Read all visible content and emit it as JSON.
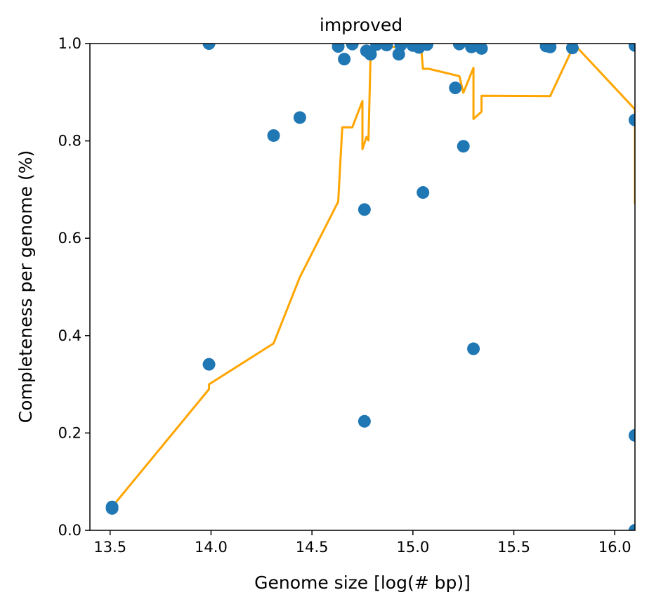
{
  "chart_data": {
    "type": "scatter",
    "title": "improved",
    "xlabel": "Genome size [log(# bp)]",
    "ylabel": "Completeness per genome (%)",
    "xlim": [
      13.4,
      16.1
    ],
    "ylim": [
      0.0,
      1.0
    ],
    "x_ticks": [
      13.5,
      14.0,
      14.5,
      15.0,
      15.5,
      16.0
    ],
    "x_tick_labels": [
      "13.5",
      "14.0",
      "14.5",
      "15.0",
      "15.5",
      "16.0"
    ],
    "y_ticks": [
      0.0,
      0.2,
      0.4,
      0.6,
      0.8,
      1.0
    ],
    "y_tick_labels": [
      "0.0",
      "0.2",
      "0.4",
      "0.6",
      "0.8",
      "1.0"
    ],
    "grid": false,
    "series": [
      {
        "kind": "points",
        "color": "#1f77b4",
        "points": [
          {
            "x": 13.51,
            "y": 0.048
          },
          {
            "x": 13.51,
            "y": 0.045
          },
          {
            "x": 13.99,
            "y": 1.0
          },
          {
            "x": 13.99,
            "y": 0.341
          },
          {
            "x": 14.31,
            "y": 0.811
          },
          {
            "x": 14.44,
            "y": 0.848
          },
          {
            "x": 14.63,
            "y": 0.994
          },
          {
            "x": 14.66,
            "y": 0.968
          },
          {
            "x": 14.7,
            "y": 0.999
          },
          {
            "x": 14.76,
            "y": 0.659
          },
          {
            "x": 14.76,
            "y": 0.224
          },
          {
            "x": 14.77,
            "y": 0.985
          },
          {
            "x": 14.79,
            "y": 0.978
          },
          {
            "x": 14.82,
            "y": 0.998
          },
          {
            "x": 14.87,
            "y": 0.997
          },
          {
            "x": 14.93,
            "y": 0.978
          },
          {
            "x": 14.94,
            "y": 0.997
          },
          {
            "x": 15.0,
            "y": 0.996
          },
          {
            "x": 15.03,
            "y": 0.992
          },
          {
            "x": 15.05,
            "y": 0.694
          },
          {
            "x": 15.07,
            "y": 0.998
          },
          {
            "x": 15.21,
            "y": 0.909
          },
          {
            "x": 15.23,
            "y": 0.999
          },
          {
            "x": 15.25,
            "y": 0.789
          },
          {
            "x": 15.29,
            "y": 0.993
          },
          {
            "x": 15.3,
            "y": 0.373
          },
          {
            "x": 15.34,
            "y": 0.99
          },
          {
            "x": 15.66,
            "y": 0.995
          },
          {
            "x": 15.68,
            "y": 0.993
          },
          {
            "x": 15.79,
            "y": 0.991
          },
          {
            "x": 16.1,
            "y": 0.996
          },
          {
            "x": 16.1,
            "y": 0.843
          },
          {
            "x": 16.1,
            "y": 0.195
          },
          {
            "x": 16.1,
            "y": 0.0
          }
        ]
      },
      {
        "kind": "line",
        "color": "#ffa500",
        "points": [
          {
            "x": 13.51,
            "y": 0.048
          },
          {
            "x": 13.99,
            "y": 0.29
          },
          {
            "x": 13.99,
            "y": 0.3
          },
          {
            "x": 14.31,
            "y": 0.384
          },
          {
            "x": 14.44,
            "y": 0.52
          },
          {
            "x": 14.63,
            "y": 0.675
          },
          {
            "x": 14.65,
            "y": 0.828
          },
          {
            "x": 14.7,
            "y": 0.828
          },
          {
            "x": 14.75,
            "y": 0.882
          },
          {
            "x": 14.75,
            "y": 0.783
          },
          {
            "x": 14.77,
            "y": 0.808
          },
          {
            "x": 14.78,
            "y": 0.801
          },
          {
            "x": 14.79,
            "y": 0.97
          },
          {
            "x": 14.8,
            "y": 0.997
          },
          {
            "x": 14.93,
            "y": 0.992
          },
          {
            "x": 14.98,
            "y": 0.997
          },
          {
            "x": 15.04,
            "y": 0.997
          },
          {
            "x": 15.05,
            "y": 0.948
          },
          {
            "x": 15.08,
            "y": 0.948
          },
          {
            "x": 15.23,
            "y": 0.933
          },
          {
            "x": 15.25,
            "y": 0.899
          },
          {
            "x": 15.3,
            "y": 0.95
          },
          {
            "x": 15.3,
            "y": 0.845
          },
          {
            "x": 15.34,
            "y": 0.86
          },
          {
            "x": 15.34,
            "y": 0.893
          },
          {
            "x": 15.68,
            "y": 0.892
          },
          {
            "x": 15.8,
            "y": 0.998
          },
          {
            "x": 16.1,
            "y": 0.865
          },
          {
            "x": 16.1,
            "y": 0.67
          }
        ]
      }
    ]
  }
}
